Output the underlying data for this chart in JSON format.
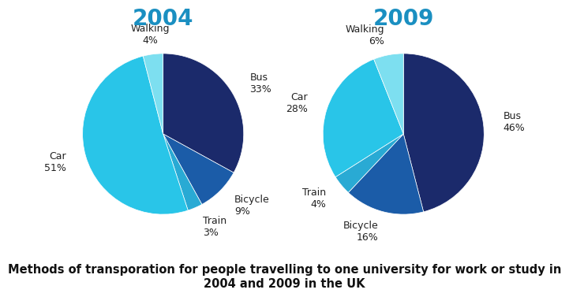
{
  "title_2004": "2004",
  "title_2009": "2009",
  "title_color": "#1a8fc1",
  "caption": "Methods of transporation for people travelling to one university for work or study in\n2004 and 2009 in the UK",
  "caption_fontsize": 10.5,
  "title_fontsize": 20,
  "label_fontsize": 9,
  "bg_color": "#ffffff",
  "pie_2004": {
    "labels": [
      "Bus",
      "Bicycle",
      "Train",
      "Car",
      "Walking"
    ],
    "values": [
      33,
      9,
      3,
      51,
      4
    ],
    "colors": [
      "#1b2a6b",
      "#1b5ca8",
      "#29aad4",
      "#29c5e8",
      "#7ddff0"
    ],
    "start_angle": 90
  },
  "pie_2009": {
    "labels": [
      "Bus",
      "Bicycle",
      "Train",
      "Car",
      "Walking"
    ],
    "values": [
      46,
      16,
      4,
      28,
      6
    ],
    "colors": [
      "#1b2a6b",
      "#1b5ca8",
      "#29aad4",
      "#29c5e8",
      "#7ddff0"
    ],
    "start_angle": 90
  }
}
